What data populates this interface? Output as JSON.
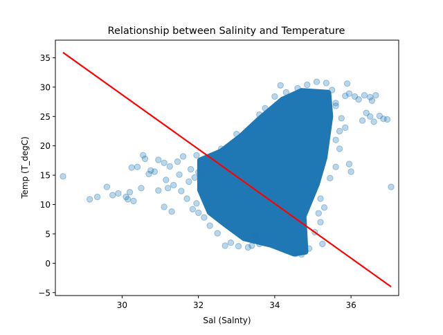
{
  "chart_data": {
    "type": "scatter",
    "title": "Relationship between Salinity and Temperature",
    "xlabel": "Sal (Salnty)",
    "ylabel": "Temp (T_degC)",
    "xlim": [
      28.25,
      37.25
    ],
    "ylim": [
      -5.5,
      38
    ],
    "xticks": [
      30,
      32,
      34,
      36
    ],
    "yticks": [
      -5,
      0,
      5,
      10,
      15,
      20,
      25,
      30,
      35
    ],
    "grid": false,
    "legend": "none",
    "marker_color": "#1f77b4",
    "marker_alpha": 0.3,
    "point_cloud": {
      "polygon": [
        [
          32.05,
          12.5
        ],
        [
          32.05,
          17.5
        ],
        [
          32.6,
          19.0
        ],
        [
          33.1,
          21.5
        ],
        [
          33.6,
          24.5
        ],
        [
          34.2,
          27.8
        ],
        [
          34.7,
          29.3
        ],
        [
          35.4,
          29.0
        ],
        [
          35.45,
          25.0
        ],
        [
          35.3,
          18.0
        ],
        [
          35.1,
          13.5
        ],
        [
          34.75,
          8.0
        ],
        [
          34.8,
          2.0
        ],
        [
          34.5,
          1.7
        ],
        [
          33.9,
          3.2
        ],
        [
          33.2,
          4.3
        ],
        [
          32.7,
          6.7
        ],
        [
          32.3,
          8.7
        ]
      ]
    },
    "points": [
      {
        "x": 28.45,
        "y": 14.8
      },
      {
        "x": 29.15,
        "y": 10.9
      },
      {
        "x": 29.35,
        "y": 11.3
      },
      {
        "x": 29.6,
        "y": 13.0
      },
      {
        "x": 29.75,
        "y": 11.6
      },
      {
        "x": 29.9,
        "y": 11.9
      },
      {
        "x": 30.1,
        "y": 11.3
      },
      {
        "x": 30.2,
        "y": 12.1
      },
      {
        "x": 30.3,
        "y": 10.6
      },
      {
        "x": 30.15,
        "y": 10.9
      },
      {
        "x": 30.25,
        "y": 16.3
      },
      {
        "x": 30.4,
        "y": 16.4
      },
      {
        "x": 30.5,
        "y": 12.8
      },
      {
        "x": 30.55,
        "y": 18.4
      },
      {
        "x": 30.6,
        "y": 17.8
      },
      {
        "x": 30.7,
        "y": 15.2
      },
      {
        "x": 30.75,
        "y": 15.8
      },
      {
        "x": 30.85,
        "y": 15.6
      },
      {
        "x": 30.95,
        "y": 17.6
      },
      {
        "x": 30.95,
        "y": 12.4
      },
      {
        "x": 31.1,
        "y": 17.1
      },
      {
        "x": 31.1,
        "y": 9.6
      },
      {
        "x": 31.15,
        "y": 14.2
      },
      {
        "x": 31.2,
        "y": 12.8
      },
      {
        "x": 31.25,
        "y": 16.5
      },
      {
        "x": 31.3,
        "y": 8.8
      },
      {
        "x": 31.35,
        "y": 13.3
      },
      {
        "x": 31.45,
        "y": 17.3
      },
      {
        "x": 31.5,
        "y": 15.1
      },
      {
        "x": 31.55,
        "y": 12.3
      },
      {
        "x": 31.6,
        "y": 18.2
      },
      {
        "x": 31.7,
        "y": 11.0
      },
      {
        "x": 31.75,
        "y": 13.9
      },
      {
        "x": 31.8,
        "y": 16.0
      },
      {
        "x": 31.85,
        "y": 9.2
      },
      {
        "x": 31.9,
        "y": 14.6
      },
      {
        "x": 31.95,
        "y": 18.4
      },
      {
        "x": 31.95,
        "y": 10.2
      },
      {
        "x": 32.0,
        "y": 15.5
      },
      {
        "x": 32.0,
        "y": 8.6
      },
      {
        "x": 32.15,
        "y": 7.8
      },
      {
        "x": 32.3,
        "y": 6.4
      },
      {
        "x": 32.5,
        "y": 5.1
      },
      {
        "x": 32.7,
        "y": 3.0
      },
      {
        "x": 32.85,
        "y": 3.5
      },
      {
        "x": 33.05,
        "y": 2.9
      },
      {
        "x": 33.3,
        "y": 2.7
      },
      {
        "x": 33.4,
        "y": 3.0
      },
      {
        "x": 33.6,
        "y": 3.3
      },
      {
        "x": 33.5,
        "y": 4.8
      },
      {
        "x": 32.6,
        "y": 19.5
      },
      {
        "x": 33.0,
        "y": 22.0
      },
      {
        "x": 33.6,
        "y": 25.3
      },
      {
        "x": 33.75,
        "y": 26.4
      },
      {
        "x": 34.0,
        "y": 28.4
      },
      {
        "x": 34.15,
        "y": 30.3
      },
      {
        "x": 34.3,
        "y": 29.1
      },
      {
        "x": 34.6,
        "y": 29.8
      },
      {
        "x": 34.85,
        "y": 30.4
      },
      {
        "x": 35.1,
        "y": 30.9
      },
      {
        "x": 35.35,
        "y": 30.7
      },
      {
        "x": 35.5,
        "y": 29.5
      },
      {
        "x": 35.6,
        "y": 26.8
      },
      {
        "x": 35.75,
        "y": 24.7
      },
      {
        "x": 35.6,
        "y": 27.3
      },
      {
        "x": 35.85,
        "y": 28.5
      },
      {
        "x": 35.9,
        "y": 30.6
      },
      {
        "x": 35.95,
        "y": 28.9
      },
      {
        "x": 36.1,
        "y": 28.4
      },
      {
        "x": 36.2,
        "y": 27.9
      },
      {
        "x": 36.35,
        "y": 28.6
      },
      {
        "x": 36.5,
        "y": 28.3
      },
      {
        "x": 36.65,
        "y": 28.6
      },
      {
        "x": 36.55,
        "y": 27.7
      },
      {
        "x": 36.5,
        "y": 25.0
      },
      {
        "x": 36.3,
        "y": 24.3
      },
      {
        "x": 36.6,
        "y": 24.1
      },
      {
        "x": 36.85,
        "y": 24.6
      },
      {
        "x": 36.95,
        "y": 24.5
      },
      {
        "x": 36.75,
        "y": 25.1
      },
      {
        "x": 36.4,
        "y": 25.6
      },
      {
        "x": 35.7,
        "y": 22.5
      },
      {
        "x": 35.85,
        "y": 23.1
      },
      {
        "x": 35.6,
        "y": 21.0
      },
      {
        "x": 35.7,
        "y": 19.5
      },
      {
        "x": 35.95,
        "y": 16.9
      },
      {
        "x": 36.0,
        "y": 15.6
      },
      {
        "x": 35.6,
        "y": 16.4
      },
      {
        "x": 35.45,
        "y": 14.5
      },
      {
        "x": 35.2,
        "y": 11.0
      },
      {
        "x": 35.3,
        "y": 9.5
      },
      {
        "x": 35.15,
        "y": 8.5
      },
      {
        "x": 35.2,
        "y": 7.0
      },
      {
        "x": 35.05,
        "y": 5.3
      },
      {
        "x": 35.25,
        "y": 3.3
      },
      {
        "x": 34.9,
        "y": 2.5
      },
      {
        "x": 34.7,
        "y": 1.5
      },
      {
        "x": 34.55,
        "y": 1.6
      },
      {
        "x": 37.05,
        "y": 13.0
      }
    ],
    "regression_line": {
      "color": "#ff0000",
      "x": [
        28.45,
        37.05
      ],
      "y": [
        35.9,
        -4.0
      ]
    }
  }
}
